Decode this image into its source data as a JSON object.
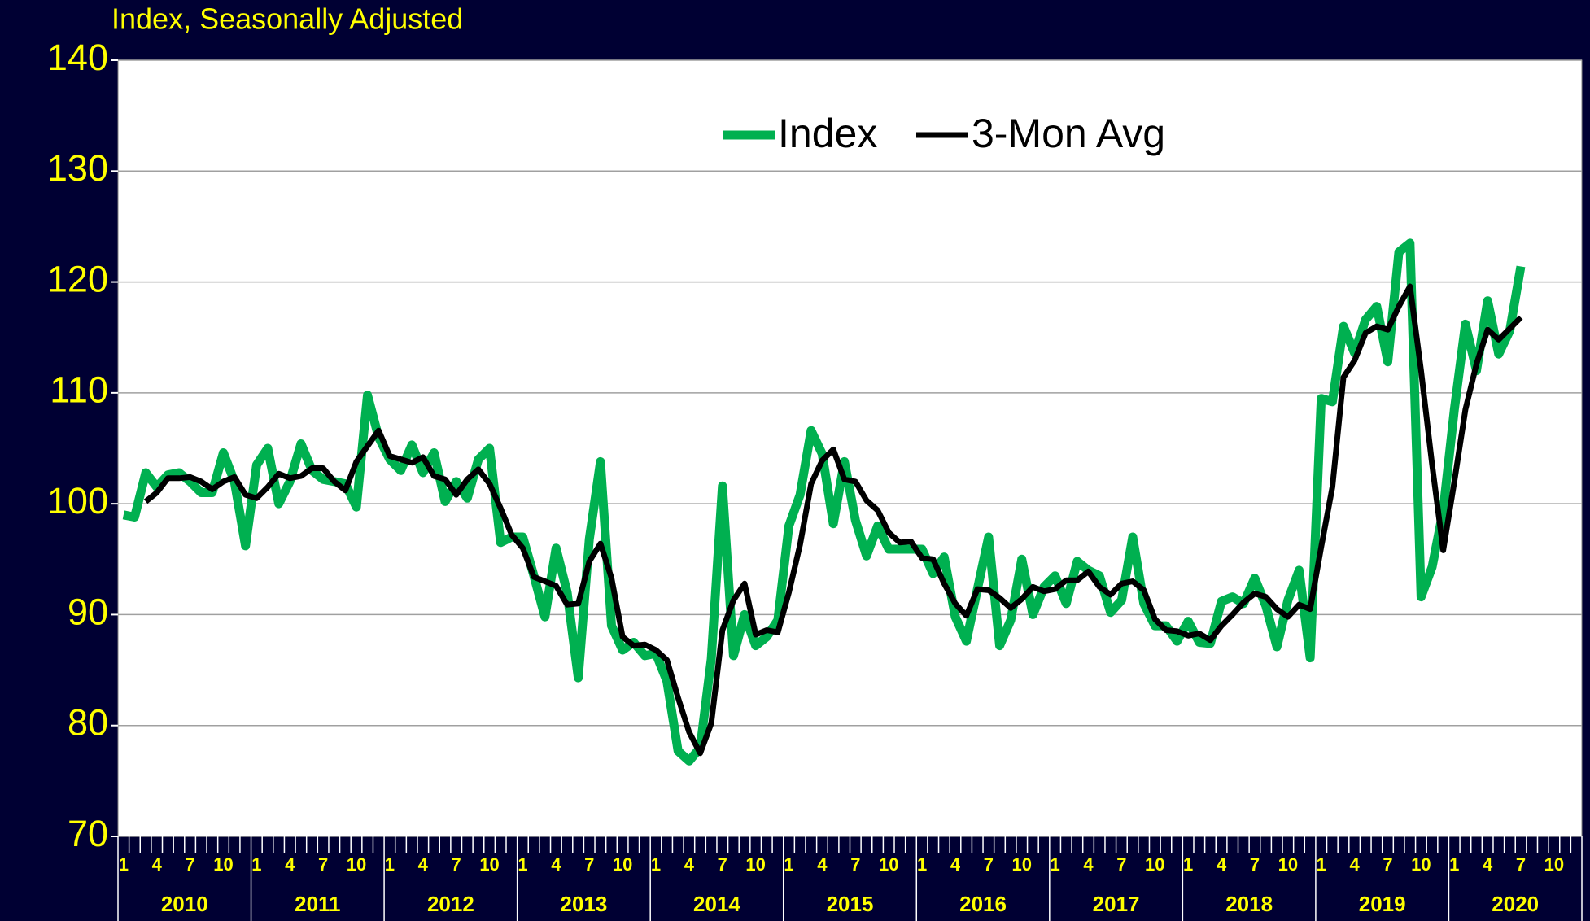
{
  "chart_data": {
    "type": "line",
    "subtitle": "Index, Seasonally Adjusted",
    "categories": [
      "1",
      null,
      null,
      "4",
      null,
      null,
      "7",
      null,
      null,
      "10",
      null,
      null,
      "1",
      null,
      null,
      "4",
      null,
      null,
      "7",
      null,
      null,
      "10",
      null,
      null,
      "1",
      null,
      null,
      "4",
      null,
      null,
      "7",
      null,
      null,
      "10",
      null,
      null,
      "1",
      null,
      null,
      "4",
      null,
      null,
      "7",
      null,
      null,
      "10",
      null,
      null,
      "1",
      null,
      null,
      "4",
      null,
      null,
      "7",
      null,
      null,
      "10",
      null,
      null,
      "1",
      null,
      null,
      "4",
      null,
      null,
      "7",
      null,
      null,
      "10",
      null,
      null,
      "1",
      null,
      null,
      "4",
      null,
      null,
      "7",
      null,
      null,
      "10",
      null,
      null,
      "1",
      null,
      null,
      "4",
      null,
      null,
      "7",
      null,
      null,
      "10",
      null,
      null,
      "1",
      null,
      null,
      "4",
      null,
      null,
      "7",
      null,
      null,
      "10",
      null,
      null,
      "1",
      null,
      null,
      "4",
      null,
      null,
      "7",
      null,
      null,
      "10",
      null,
      null,
      "1",
      null,
      null,
      "4",
      null,
      null,
      "7",
      null,
      null,
      "10",
      null,
      null
    ],
    "years": [
      "2010",
      "2011",
      "2012",
      "2013",
      "2014",
      "2015",
      "2016",
      "2017",
      "2018",
      "2019",
      "2020"
    ],
    "series": [
      {
        "name": "Index",
        "color": "#00b050",
        "values": [
          99,
          98.8,
          102.8,
          101.5,
          102.6,
          102.8,
          102,
          101,
          101,
          104.6,
          102,
          96.2,
          103.5,
          105,
          100,
          102,
          105.4,
          103,
          102.2,
          102,
          101.8,
          99.7,
          109.8,
          106,
          104,
          103,
          105.3,
          102.8,
          104.6,
          100.2,
          102,
          100.5,
          104,
          105,
          96.5,
          97,
          97,
          93.5,
          89.8,
          96,
          92,
          84.3,
          96.8,
          103.8,
          89,
          86.8,
          87.5,
          86.3,
          86.5,
          84,
          77.7,
          76.8,
          78,
          86,
          101.6,
          86.3,
          90,
          87.2,
          88,
          89.5,
          98,
          100.8,
          106.6,
          104.5,
          98.2,
          103.8,
          98.5,
          95.3,
          98,
          95.9,
          95.9,
          95.9,
          95.9,
          93.7,
          95.2,
          89.8,
          87.6,
          92.3,
          97,
          87.2,
          89.5,
          95,
          90,
          92.5,
          93.5,
          91,
          94.8,
          94,
          93.5,
          90.2,
          91.3,
          97,
          91,
          89,
          89,
          87.6,
          89.4,
          87.5,
          87.4,
          91.2,
          91.6,
          91,
          93.3,
          90.8,
          87.1,
          91.3,
          94,
          86.1,
          109.5,
          109.2,
          116,
          113.6,
          116.6,
          117.8,
          112.8,
          122.7,
          123.5,
          91.6,
          94.3,
          99.4,
          108.5,
          116.2,
          112,
          118.3,
          113.5,
          115.6,
          121.4,
          null,
          null,
          null,
          null,
          null
        ]
      },
      {
        "name": "3-Mon Avg",
        "color": "#000000",
        "values": [
          null,
          null,
          100.2,
          101,
          102.3,
          102.3,
          102.4,
          102,
          101.3,
          102,
          102.4,
          100.8,
          100.5,
          101.5,
          102.7,
          102.3,
          102.5,
          103.2,
          103.2,
          102,
          101.2,
          103.8,
          105.2,
          106.6,
          104.3,
          104,
          103.7,
          104.2,
          102.5,
          102.2,
          100.8,
          102.2,
          103.1,
          101.8,
          99.6,
          97.2,
          96,
          93.4,
          93,
          92.6,
          90.9,
          91,
          94.8,
          96.4,
          93.3,
          88,
          87.2,
          87.3,
          86.8,
          85.9,
          82.5,
          79.4,
          77.5,
          80.2,
          88.6,
          91.3,
          92.8,
          88.2,
          88.6,
          88.4,
          92,
          96.3,
          101.8,
          103.9,
          104.9,
          102.2,
          102,
          100.3,
          99.4,
          97.4,
          96.5,
          96.6,
          95.1,
          95,
          92.8,
          91,
          89.9,
          92.3,
          92.2,
          91.5,
          90.6,
          91.4,
          92.5,
          92.1,
          92.3,
          93.1,
          93.1,
          93.9,
          92.5,
          91.8,
          92.8,
          93,
          92.2,
          89.6,
          88.6,
          88.5,
          88.1,
          88.3,
          87.7,
          89,
          90,
          91.1,
          91.9,
          91.6,
          90.5,
          89.8,
          90.9,
          90.5,
          96.1,
          101.5,
          111.4,
          112.9,
          115.4,
          116,
          115.7,
          117.8,
          119.6,
          112,
          103.5,
          95.8,
          102,
          108.5,
          112.6,
          115.7,
          114.8,
          115.8,
          116.8,
          null,
          null,
          null,
          null,
          null
        ]
      }
    ],
    "ylim": [
      70,
      140
    ],
    "yticks": [
      70,
      80,
      90,
      100,
      110,
      120,
      130,
      140
    ],
    "grid": true
  }
}
